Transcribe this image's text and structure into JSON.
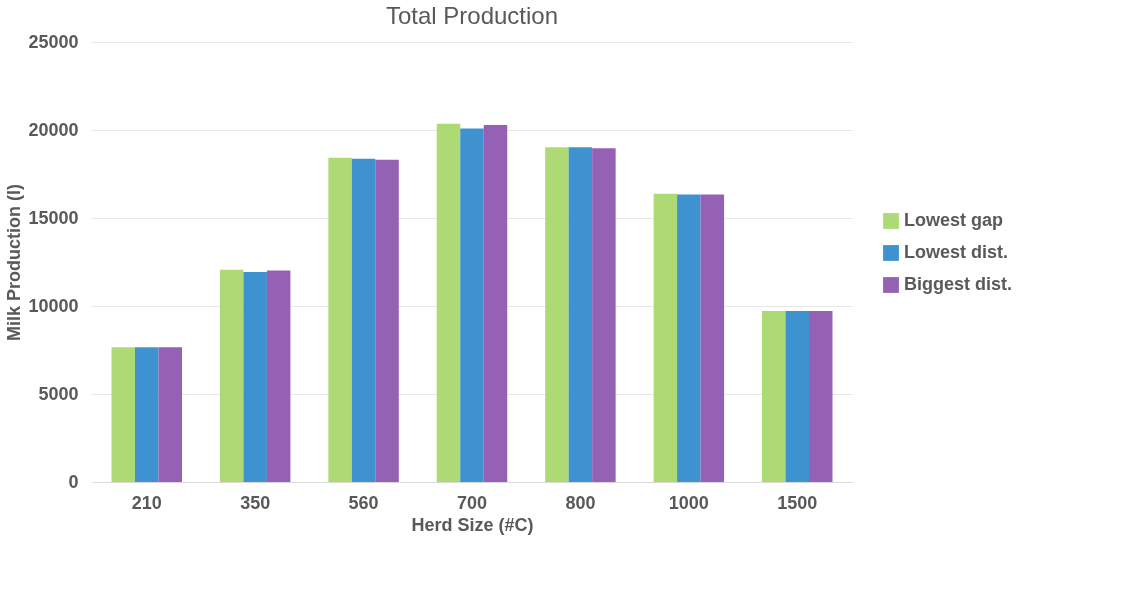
{
  "chart_data": {
    "type": "bar",
    "title": "Total Production",
    "xlabel": "Herd Size (#C)",
    "ylabel": "Milk Production (l)",
    "categories": [
      "210",
      "350",
      "560",
      "700",
      "800",
      "1000",
      "1500"
    ],
    "series": [
      {
        "name": "Lowest gap",
        "color": "#a9d86e",
        "values": [
          7650,
          12060,
          18420,
          20350,
          19020,
          16380,
          9710
        ]
      },
      {
        "name": "Lowest dist.",
        "color": "#348ccd",
        "values": [
          7650,
          11930,
          18360,
          20090,
          19020,
          16330,
          9710
        ]
      },
      {
        "name": "Biggest dist.",
        "color": "#8e59b0",
        "values": [
          7650,
          12020,
          18310,
          20290,
          18970,
          16330,
          9710
        ]
      }
    ],
    "ylim": [
      0,
      25000
    ],
    "yticks": [
      0,
      5000,
      10000,
      15000,
      20000,
      25000
    ],
    "grid": "y",
    "legend": "right"
  }
}
